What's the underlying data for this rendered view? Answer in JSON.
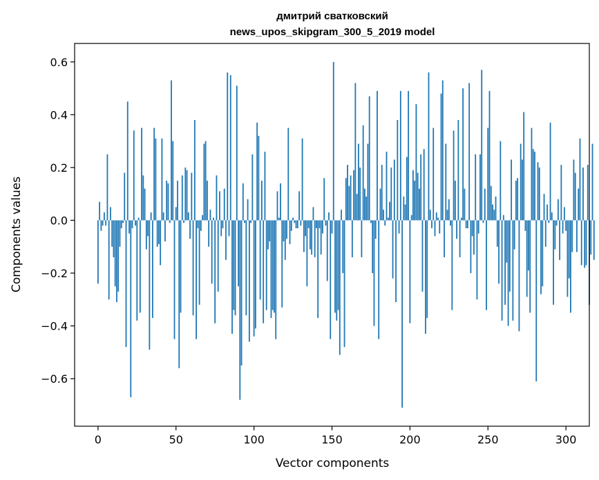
{
  "chart_data": {
    "type": "bar",
    "title": "дмитрий сватковский",
    "subtitle": "news_upos_skipgram_300_5_2019 model",
    "xlabel": "Vector components",
    "ylabel": "Components values",
    "xlim": [
      -15,
      315
    ],
    "ylim": [
      -0.78,
      0.67
    ],
    "xticks": [
      0,
      50,
      100,
      150,
      200,
      250,
      300
    ],
    "xtick_labels": [
      "0",
      "50",
      "100",
      "150",
      "200",
      "250",
      "300"
    ],
    "yticks": [
      -0.6,
      -0.4,
      -0.2,
      0.0,
      0.2,
      0.4,
      0.6
    ],
    "ytick_labels": [
      "−0.6",
      "−0.4",
      "−0.2",
      "0.0",
      "0.2",
      "0.4",
      "0.6"
    ],
    "bar_color": "#1f77b4",
    "grid": false,
    "values": [
      -0.24,
      0.07,
      -0.04,
      -0.02,
      0.03,
      -0.02,
      0.25,
      -0.3,
      0.05,
      -0.1,
      -0.14,
      -0.25,
      -0.31,
      -0.27,
      -0.1,
      -0.03,
      -0.01,
      0.18,
      -0.48,
      0.45,
      -0.05,
      -0.67,
      -0.03,
      0.34,
      -0.02,
      -0.38,
      0.01,
      -0.35,
      0.35,
      0.17,
      0.12,
      -0.11,
      -0.06,
      -0.49,
      0.03,
      -0.37,
      0.35,
      0.31,
      -0.1,
      -0.09,
      -0.17,
      0.31,
      0.03,
      -0.08,
      0.15,
      0.14,
      -0.01,
      0.53,
      0.3,
      -0.45,
      0.05,
      0.15,
      -0.56,
      -0.35,
      0.17,
      -0.01,
      0.2,
      0.19,
      0.03,
      -0.07,
      0.18,
      -0.36,
      0.38,
      -0.45,
      -0.03,
      -0.32,
      -0.04,
      0.02,
      0.29,
      0.3,
      0.15,
      -0.1,
      0.04,
      -0.24,
      0.01,
      -0.39,
      0.17,
      -0.27,
      0.11,
      -0.06,
      -0.03,
      0.12,
      -0.15,
      0.56,
      -0.06,
      0.55,
      -0.43,
      -0.34,
      -0.36,
      0.51,
      -0.25,
      -0.68,
      -0.55,
      0.14,
      -0.01,
      -0.36,
      0.08,
      -0.46,
      -0.01,
      0.25,
      -0.44,
      -0.41,
      0.37,
      0.32,
      -0.3,
      0.15,
      -0.39,
      0.26,
      -0.34,
      -0.11,
      -0.08,
      -0.37,
      -0.34,
      -0.35,
      -0.45,
      0.11,
      0.01,
      0.14,
      -0.33,
      -0.08,
      -0.15,
      -0.07,
      0.35,
      -0.09,
      -0.04,
      0.01,
      -0.01,
      -0.03,
      -0.03,
      0.11,
      -0.02,
      0.31,
      -0.12,
      -0.06,
      -0.25,
      -0.03,
      -0.11,
      -0.13,
      0.05,
      -0.14,
      -0.03,
      -0.37,
      -0.03,
      -0.13,
      -0.05,
      0.16,
      -0.02,
      -0.23,
      0.03,
      -0.45,
      -0.05,
      0.6,
      -0.35,
      -0.38,
      -0.34,
      -0.51,
      0.04,
      -0.2,
      -0.48,
      0.16,
      0.21,
      0.13,
      0.17,
      -0.14,
      0.19,
      0.52,
      0.1,
      0.29,
      0.2,
      -0.14,
      0.36,
      0.12,
      0.09,
      0.29,
      0.47,
      -0.01,
      -0.2,
      -0.4,
      -0.07,
      0.49,
      -0.45,
      0.12,
      0.21,
      0.04,
      -0.02,
      0.26,
      0.01,
      0.07,
      0.2,
      -0.22,
      0.23,
      -0.31,
      0.38,
      -0.05,
      0.49,
      -0.71,
      0.09,
      0.06,
      0.24,
      0.49,
      -0.39,
      0.02,
      0.19,
      0.15,
      0.44,
      0.18,
      0.12,
      0.25,
      -0.27,
      0.27,
      -0.43,
      -0.37,
      0.56,
      0.04,
      -0.03,
      0.35,
      -0.06,
      0.03,
      0.01,
      -0.05,
      0.48,
      0.53,
      -0.14,
      0.29,
      0.04,
      0.08,
      -0.02,
      -0.34,
      0.34,
      0.15,
      -0.07,
      0.38,
      -0.14,
      0.01,
      0.5,
      0.12,
      -0.03,
      -0.03,
      0.52,
      -0.2,
      -0.06,
      -0.13,
      0.25,
      -0.3,
      -0.05,
      0.25,
      0.57,
      -0.01,
      0.12,
      -0.34,
      0.35,
      0.49,
      0.13,
      0.06,
      0.04,
      0.09,
      -0.1,
      -0.24,
      0.3,
      -0.38,
      0.02,
      -0.32,
      -0.16,
      -0.4,
      -0.27,
      0.23,
      -0.38,
      -0.11,
      0.15,
      0.16,
      -0.42,
      0.29,
      0.23,
      0.41,
      -0.04,
      -0.29,
      -0.19,
      -0.35,
      0.35,
      0.27,
      0.26,
      -0.61,
      0.22,
      0.2,
      -0.28,
      -0.25,
      0.1,
      -0.1,
      0.06,
      -0.01,
      0.37,
      0.03,
      -0.32,
      -0.11,
      -0.02,
      0.08,
      -0.15,
      0.21,
      -0.05,
      0.05,
      -0.04,
      -0.29,
      -0.22,
      -0.35,
      -0.12,
      0.23,
      0.18,
      -0.12,
      0.12,
      0.31,
      -0.17,
      0.2,
      -0.18,
      -0.17,
      0.21,
      -0.32,
      -0.13,
      0.29,
      -0.15
    ]
  }
}
